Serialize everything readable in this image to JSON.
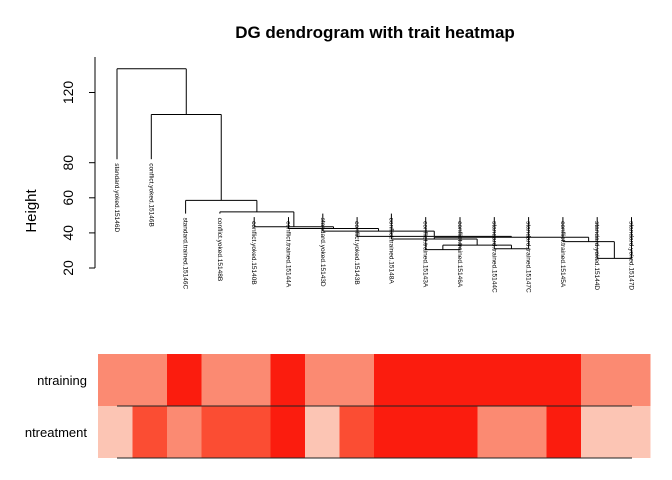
{
  "chart_data": {
    "type": "dendrogram-heatmap",
    "title": "DG dendrogram with trait heatmap",
    "ylabel": "Height",
    "yticks": [
      20,
      40,
      60,
      80,
      120
    ],
    "ylim": [
      20,
      140
    ],
    "leaves": [
      "standard.yoked.15146D",
      "conflict.yoked.15146B",
      "standard.trained.15146C",
      "conflict.yoked.15148B",
      "conflict.yoked.15140B",
      "conflict.trained.15144A",
      "standard.yoked.15143D",
      "conflict.yoked.15143B",
      "conflict.trained.15148A",
      "conflict.trained.15143A",
      "conflict.trained.15146A",
      "standard.trained.15144C",
      "standard.trained.15147C",
      "conflict.trained.15145A",
      "standard.yoked.15144D",
      "standard.yoked.15147D"
    ],
    "merges": [
      [
        -1,
        2,
        133.5
      ],
      [
        -2,
        3,
        107.5
      ],
      [
        -3,
        4,
        58.5
      ],
      [
        -4,
        5,
        52
      ],
      [
        -5,
        6,
        43.5
      ],
      [
        -6,
        7,
        42.5
      ],
      [
        -7,
        8,
        41
      ],
      [
        -8,
        9,
        38
      ],
      [
        -9,
        10,
        37.5
      ],
      [
        -10,
        11,
        36.5
      ],
      [
        -11,
        12,
        33
      ],
      [
        -12,
        13,
        31
      ],
      [
        -13,
        14,
        30.5
      ],
      [
        -14,
        15,
        35
      ],
      [
        -15,
        -16,
        25.5
      ],
      [
        -4,
        -5,
        43
      ],
      [
        -6,
        -7,
        41
      ]
    ],
    "tree": {
      "h": 133.5,
      "l": {
        "leaf": 0
      },
      "r": {
        "h": 107.5,
        "l": {
          "leaf": 1
        },
        "r": {
          "h": 58.5,
          "l": {
            "leaf": 2
          },
          "r": {
            "h": 52,
            "l": {
              "leaf": 3
            },
            "r": {
              "h": 43.5,
              "l": {
                "leaf": 4
              },
              "r": {
                "h": 42.5,
                "l": {
                  "leaf": 5
                },
                "r": {
                  "h": 41,
                  "l": {
                    "leaf": 6
                  },
                  "r": {
                    "h": 38,
                    "l": {
                      "leaf": 7
                    },
                    "r": {
                      "h": 37.5,
                      "l": {
                        "h": 36.5,
                        "l": {
                          "leaf": 8
                        },
                        "r": {
                          "h": 33,
                          "l": {
                            "h": 30.5,
                            "l": {
                              "leaf": 9
                            },
                            "r": {
                              "leaf": 10
                            }
                          },
                          "r": {
                            "h": 31,
                            "l": {
                              "leaf": 11
                            },
                            "r": {
                              "leaf": 12
                            }
                          }
                        }
                      },
                      "r": {
                        "h": 35,
                        "l": {
                          "leaf": 13
                        },
                        "r": {
                          "h": 25.5,
                          "l": {
                            "leaf": 14
                          },
                          "r": {
                            "leaf": 15
                          }
                        }
                      }
                    }
                  }
                }
              }
            }
          }
        }
      }
    },
    "heatmap": {
      "rows": [
        {
          "name": "ntraining",
          "colors": [
            "#fb8a72",
            "#fb8a72",
            "#fb1c0e",
            "#fb8a72",
            "#fb8a72",
            "#fb1c0e",
            "#fb8a72",
            "#fb8a72",
            "#fb1c0e",
            "#fb1c0e",
            "#fb1c0e",
            "#fb1c0e",
            "#fb1c0e",
            "#fb1c0e",
            "#fb8a72",
            "#fb8a72"
          ]
        },
        {
          "name": "ntreatment",
          "colors": [
            "#fcc5b4",
            "#fb4d33",
            "#fb8a72",
            "#fb4d33",
            "#fb4d33",
            "#fb1c0e",
            "#fcc5b4",
            "#fb4d33",
            "#fb1c0e",
            "#fb1c0e",
            "#fb1c0e",
            "#fb8a72",
            "#fb8a72",
            "#fb1c0e",
            "#fcc5b4",
            "#fcc5b4"
          ]
        }
      ]
    }
  }
}
